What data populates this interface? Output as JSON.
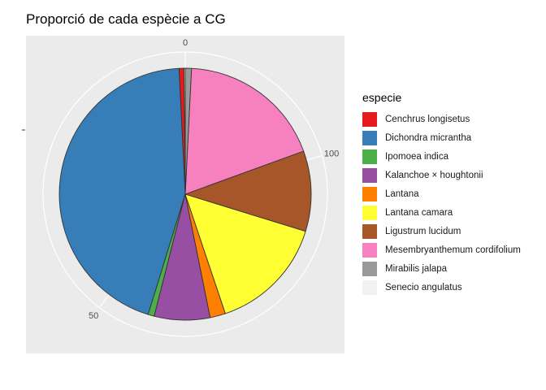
{
  "chart_data": {
    "type": "pie",
    "title": "Proporció de cada espècie a CG",
    "legend_title": "especie",
    "legend_position": "right",
    "ticks": [
      {
        "value": 0,
        "label": "0"
      },
      {
        "value": 50,
        "label": "50"
      },
      {
        "value": 100,
        "label": "100"
      }
    ],
    "total": 126,
    "slices": [
      {
        "name": "Cenchrus longisetus",
        "value": 1,
        "color": "#E41A1C"
      },
      {
        "name": "Dichondra micrantha",
        "value": 56,
        "color": "#377EB8"
      },
      {
        "name": "Ipomoea indica",
        "value": 1,
        "color": "#4DAF4A"
      },
      {
        "name": "Kalanchoe × houghtonii",
        "value": 9,
        "color": "#984EA3"
      },
      {
        "name": "Lantana",
        "value": 2.5,
        "color": "#FF7F00"
      },
      {
        "name": "Lantana camara",
        "value": 19,
        "color": "#FFFF33"
      },
      {
        "name": "Ligustrum lucidum",
        "value": 13,
        "color": "#A65628"
      },
      {
        "name": "Mesembryanthemum cordifolium",
        "value": 23.5,
        "color": "#F781BF"
      },
      {
        "name": "Mirabilis jalapa",
        "value": 1,
        "color": "#999999"
      },
      {
        "name": "Senecio angulatus",
        "value": 0.2,
        "color": "#F2F2F2"
      }
    ],
    "panel_background": "#EBEBEB",
    "grid_color": "#FFFFFF"
  }
}
